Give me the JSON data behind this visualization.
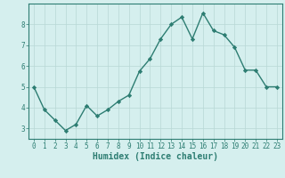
{
  "x": [
    0,
    1,
    2,
    3,
    4,
    5,
    6,
    7,
    8,
    9,
    10,
    11,
    12,
    13,
    14,
    15,
    16,
    17,
    18,
    19,
    20,
    21,
    22,
    23
  ],
  "y": [
    5.0,
    3.9,
    3.4,
    2.9,
    3.2,
    4.1,
    3.6,
    3.9,
    4.3,
    4.6,
    5.75,
    6.35,
    7.3,
    8.0,
    8.35,
    7.3,
    8.55,
    7.7,
    7.5,
    6.9,
    5.8,
    5.8,
    5.0,
    5.0
  ],
  "line_color": "#2d7d72",
  "marker": "D",
  "marker_size": 2.2,
  "bg_color": "#d5efee",
  "grid_color": "#b8d8d5",
  "xlabel": "Humidex (Indice chaleur)",
  "xlim": [
    -0.5,
    23.5
  ],
  "ylim": [
    2.5,
    9.0
  ],
  "yticks": [
    3,
    4,
    5,
    6,
    7,
    8
  ],
  "xticks": [
    0,
    1,
    2,
    3,
    4,
    5,
    6,
    7,
    8,
    9,
    10,
    11,
    12,
    13,
    14,
    15,
    16,
    17,
    18,
    19,
    20,
    21,
    22,
    23
  ],
  "tick_fontsize": 5.5,
  "xlabel_fontsize": 7.0,
  "line_width": 1.0,
  "axis_color": "#2d7d72"
}
